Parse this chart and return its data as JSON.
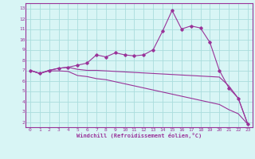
{
  "x": [
    0,
    1,
    2,
    3,
    4,
    5,
    6,
    7,
    8,
    9,
    10,
    11,
    12,
    13,
    14,
    15,
    16,
    17,
    18,
    19,
    20,
    21,
    22,
    23
  ],
  "line1": [
    7.0,
    6.7,
    7.0,
    7.2,
    7.3,
    7.5,
    7.7,
    8.5,
    8.3,
    8.7,
    8.5,
    8.4,
    8.5,
    9.0,
    10.8,
    12.8,
    11.0,
    11.3,
    11.1,
    9.7,
    7.0,
    5.3,
    4.3,
    1.8
  ],
  "line2": [
    7.0,
    6.7,
    7.0,
    7.2,
    7.3,
    7.1,
    7.0,
    7.0,
    6.95,
    6.9,
    6.85,
    6.8,
    6.75,
    6.7,
    6.65,
    6.6,
    6.55,
    6.5,
    6.45,
    6.4,
    6.35,
    5.5,
    4.3,
    1.8
  ],
  "line3": [
    7.0,
    6.7,
    6.95,
    6.95,
    6.9,
    6.5,
    6.4,
    6.2,
    6.1,
    5.9,
    5.7,
    5.5,
    5.3,
    5.1,
    4.9,
    4.7,
    4.5,
    4.3,
    4.1,
    3.9,
    3.7,
    3.2,
    2.8,
    1.8
  ],
  "line_color": "#993399",
  "bg_color": "#d8f5f5",
  "grid_color": "#aadddd",
  "xlabel": "Windchill (Refroidissement éolien,°C)",
  "xlim": [
    -0.5,
    23.5
  ],
  "ylim": [
    1.5,
    13.5
  ],
  "yticks": [
    2,
    3,
    4,
    5,
    6,
    7,
    8,
    9,
    10,
    11,
    12,
    13
  ],
  "xticks": [
    0,
    1,
    2,
    3,
    4,
    5,
    6,
    7,
    8,
    9,
    10,
    11,
    12,
    13,
    14,
    15,
    16,
    17,
    18,
    19,
    20,
    21,
    22,
    23
  ]
}
